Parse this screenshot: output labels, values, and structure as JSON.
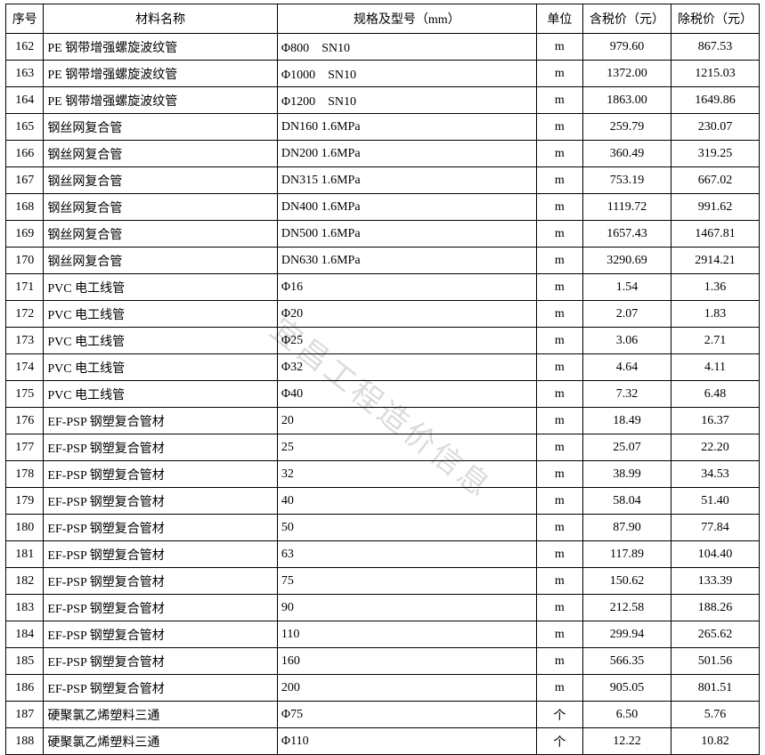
{
  "watermark": "宜昌工程造价信息",
  "table": {
    "columns": [
      "序号",
      "材料名称",
      "规格及型号（mm）",
      "单位",
      "含税价（元）",
      "除税价（元）"
    ],
    "rows": [
      [
        "162",
        "PE 钢带增强螺旋波纹管",
        "Φ800　SN10",
        "m",
        "979.60",
        "867.53"
      ],
      [
        "163",
        "PE 钢带增强螺旋波纹管",
        "Φ1000　SN10",
        "m",
        "1372.00",
        "1215.03"
      ],
      [
        "164",
        "PE 钢带增强螺旋波纹管",
        "Φ1200　SN10",
        "m",
        "1863.00",
        "1649.86"
      ],
      [
        "165",
        "钢丝网复合管",
        "DN160 1.6MPa",
        "m",
        "259.79",
        "230.07"
      ],
      [
        "166",
        "钢丝网复合管",
        "DN200 1.6MPa",
        "m",
        "360.49",
        "319.25"
      ],
      [
        "167",
        "钢丝网复合管",
        "DN315 1.6MPa",
        "m",
        "753.19",
        "667.02"
      ],
      [
        "168",
        "钢丝网复合管",
        "DN400 1.6MPa",
        "m",
        "1119.72",
        "991.62"
      ],
      [
        "169",
        "钢丝网复合管",
        "DN500 1.6MPa",
        "m",
        "1657.43",
        "1467.81"
      ],
      [
        "170",
        "钢丝网复合管",
        "DN630 1.6MPa",
        "m",
        "3290.69",
        "2914.21"
      ],
      [
        "171",
        "PVC 电工线管",
        "Φ16",
        "m",
        "1.54",
        "1.36"
      ],
      [
        "172",
        "PVC 电工线管",
        "Φ20",
        "m",
        "2.07",
        "1.83"
      ],
      [
        "173",
        "PVC 电工线管",
        "Φ25",
        "m",
        "3.06",
        "2.71"
      ],
      [
        "174",
        "PVC 电工线管",
        "Φ32",
        "m",
        "4.64",
        "4.11"
      ],
      [
        "175",
        "PVC 电工线管",
        "Φ40",
        "m",
        "7.32",
        "6.48"
      ],
      [
        "176",
        "EF-PSP 钢塑复合管材",
        "20",
        "m",
        "18.49",
        "16.37"
      ],
      [
        "177",
        "EF-PSP 钢塑复合管材",
        "25",
        "m",
        "25.07",
        "22.20"
      ],
      [
        "178",
        "EF-PSP 钢塑复合管材",
        "32",
        "m",
        "38.99",
        "34.53"
      ],
      [
        "179",
        "EF-PSP 钢塑复合管材",
        "40",
        "m",
        "58.04",
        "51.40"
      ],
      [
        "180",
        "EF-PSP 钢塑复合管材",
        "50",
        "m",
        "87.90",
        "77.84"
      ],
      [
        "181",
        "EF-PSP 钢塑复合管材",
        "63",
        "m",
        "117.89",
        "104.40"
      ],
      [
        "182",
        "EF-PSP 钢塑复合管材",
        "75",
        "m",
        "150.62",
        "133.39"
      ],
      [
        "183",
        "EF-PSP 钢塑复合管材",
        "90",
        "m",
        "212.58",
        "188.26"
      ],
      [
        "184",
        "EF-PSP 钢塑复合管材",
        "110",
        "m",
        "299.94",
        "265.62"
      ],
      [
        "185",
        "EF-PSP 钢塑复合管材",
        "160",
        "m",
        "566.35",
        "501.56"
      ],
      [
        "186",
        "EF-PSP 钢塑复合管材",
        "200",
        "m",
        "905.05",
        "801.51"
      ],
      [
        "187",
        "硬聚氯乙烯塑料三通",
        "Φ75",
        "个",
        "6.50",
        "5.76"
      ],
      [
        "188",
        "硬聚氯乙烯塑料三通",
        "Φ110",
        "个",
        "12.22",
        "10.82"
      ]
    ]
  }
}
